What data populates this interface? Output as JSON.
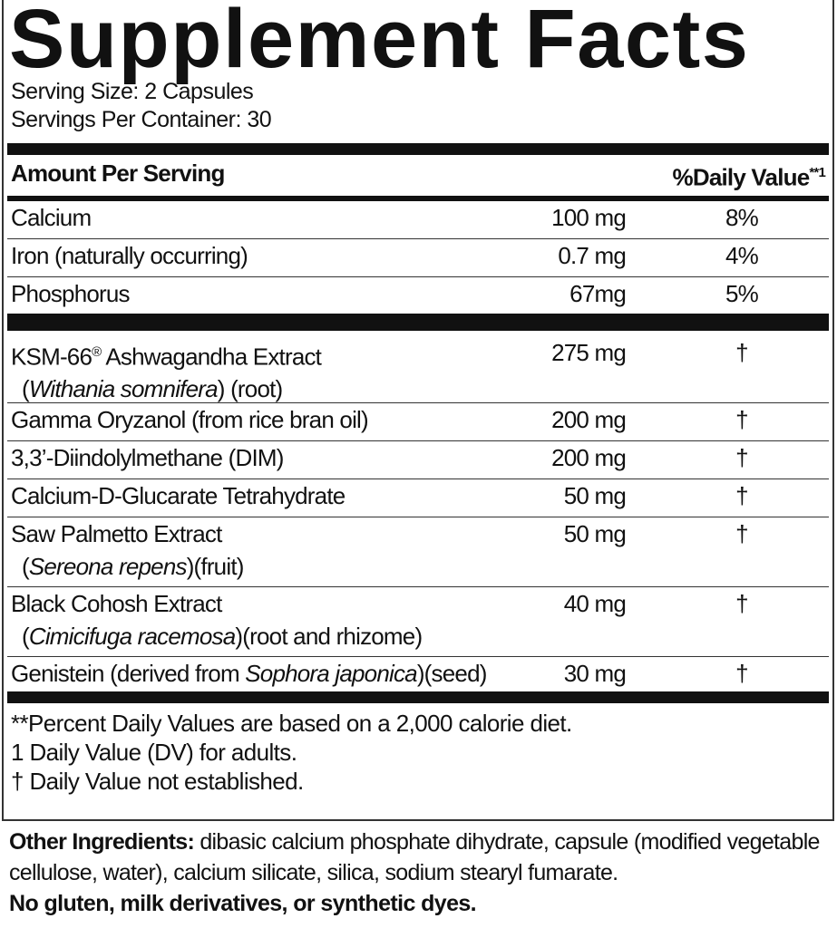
{
  "title": "Supplement Facts",
  "serving_size": "Serving Size: 2 Capsules",
  "servings_per_container": "Servings Per Container: 30",
  "header": {
    "amount": "Amount Per Serving",
    "dv": "%Daily Value",
    "dv_mark": "**1"
  },
  "vitamins": [
    {
      "name": "Calcium",
      "amount": "100 mg",
      "dv": "8%"
    },
    {
      "name": "Iron (naturally occurring)",
      "amount": "0.7 mg",
      "dv": "4%"
    },
    {
      "name": "Phosphorus",
      "amount": "67mg",
      "dv": "5%"
    }
  ],
  "ingredients": [
    {
      "name": "KSM-66",
      "reg": "®",
      "name_rest": " Ashwagandha Extract",
      "latin": "Withania somnifera",
      "part": " (root)",
      "amount": "275 mg",
      "dv": "†"
    },
    {
      "name": "Gamma Oryzanol (from rice bran oil)",
      "amount": "200 mg",
      "dv": "†"
    },
    {
      "name": "3,3’-Diindolylmethane (DIM)",
      "amount": "200 mg",
      "dv": "†"
    },
    {
      "name": "Calcium-D-Glucarate Tetrahydrate",
      "amount": "50 mg",
      "dv": "†"
    },
    {
      "name": "Saw Palmetto Extract",
      "latin": "Sereona repens",
      "part": "(fruit)",
      "amount": "50 mg",
      "dv": "†"
    },
    {
      "name": "Black Cohosh Extract",
      "latin": "Cimicifuga racemosa",
      "part": "(root and rhizome)",
      "amount": "40 mg",
      "dv": "†"
    },
    {
      "name": "Genistein (derived from ",
      "latin": "Sophora japonica",
      "part": ")(seed)",
      "amount": "30 mg",
      "dv": "†"
    }
  ],
  "footnotes": [
    "**Percent Daily Values are based on a 2,000 calorie diet.",
    "1 Daily Value (DV) for adults.",
    "† Daily Value not established."
  ],
  "other_ingredients": {
    "label": "Other Ingredients:",
    "text": " dibasic calcium phosphate dihydrate, capsule (modified vegetable cellulose, water), calcium silicate, silica, sodium stearyl fumarate."
  },
  "allergen_statement": "No gluten, milk derivatives, or synthetic dyes."
}
